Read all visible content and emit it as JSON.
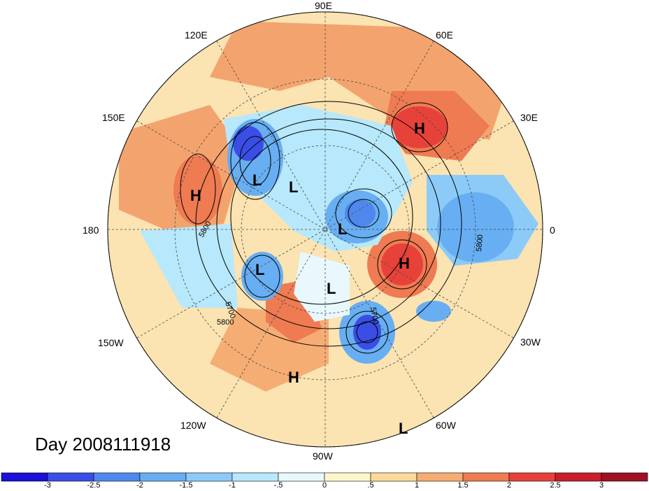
{
  "map": {
    "title": "Day 2008111918",
    "longitude_labels": [
      {
        "text": "90E",
        "pos": "top"
      },
      {
        "text": "60E",
        "pos": "upper-right"
      },
      {
        "text": "30E",
        "pos": "right-upper"
      },
      {
        "text": "0",
        "pos": "right"
      },
      {
        "text": "30W",
        "pos": "right-lower"
      },
      {
        "text": "60W",
        "pos": "lower-right"
      },
      {
        "text": "90W",
        "pos": "bottom"
      },
      {
        "text": "120W",
        "pos": "lower-left"
      },
      {
        "text": "150W",
        "pos": "left-lower"
      },
      {
        "text": "180",
        "pos": "left"
      },
      {
        "text": "150E",
        "pos": "left-upper"
      },
      {
        "text": "120E",
        "pos": "upper-left"
      }
    ],
    "pressure_systems": [
      {
        "label": "H",
        "region": "north-atlantic-europe"
      },
      {
        "label": "H",
        "region": "north-pacific"
      },
      {
        "label": "L",
        "region": "siberia-west"
      },
      {
        "label": "L",
        "region": "siberia-east"
      },
      {
        "label": "L",
        "region": "polar"
      },
      {
        "label": "H",
        "region": "north-atlantic"
      },
      {
        "label": "L",
        "region": "alaska"
      },
      {
        "label": "L",
        "region": "hudson-bay"
      },
      {
        "label": "H",
        "region": "gulf-of-mexico"
      },
      {
        "label": "L",
        "region": "south-america"
      }
    ],
    "contour_labels": [
      "5800",
      "5700",
      "5800",
      "5800",
      "5700"
    ]
  },
  "colorbar": {
    "ticks": [
      "-3",
      "-2.5",
      "-2",
      "-1.5",
      "-1",
      "-.5",
      "0",
      ".5",
      "1",
      "1.5",
      "2",
      "2.5",
      "3"
    ],
    "colors": [
      "#1a10d6",
      "#3a4ee6",
      "#4f88ec",
      "#68aef2",
      "#8ccbf7",
      "#b7e8fb",
      "#e8f8fd",
      "#fff7cc",
      "#fbd99a",
      "#f5ad74",
      "#ef7b52",
      "#e6423a",
      "#c81f2b",
      "#a01022"
    ]
  }
}
